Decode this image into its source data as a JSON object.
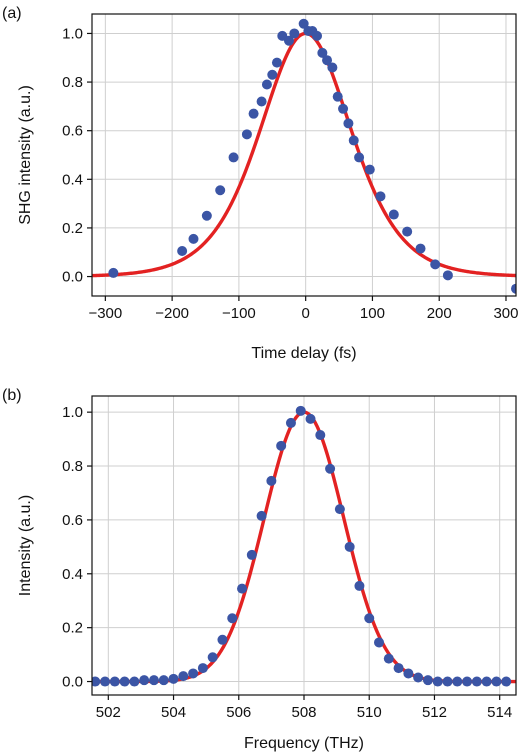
{
  "chart_data": [
    {
      "type": "scatter",
      "panel_label": "(a)",
      "xlabel": "Time delay (fs)",
      "ylabel": "SHG intensity (a.u.)",
      "xlim": [
        -320,
        315
      ],
      "ylim": [
        -0.08,
        1.08
      ],
      "xticks": [
        -300,
        -200,
        -100,
        0,
        100,
        200,
        300
      ],
      "xtick_labels": [
        "−300",
        "−200",
        "−100",
        "0",
        "100",
        "200",
        "300"
      ],
      "yticks": [
        0.0,
        0.2,
        0.4,
        0.6,
        0.8,
        1.0
      ],
      "ytick_labels": [
        "0.0",
        "0.2",
        "0.4",
        "0.6",
        "0.8",
        "1.0"
      ],
      "grid": true,
      "series": [
        {
          "kind": "points",
          "color": "#3b55a5",
          "x": [
            -288,
            -185,
            -168,
            -148,
            -128,
            -108,
            -88,
            -78,
            -66,
            -58,
            -50,
            -43,
            -35,
            -25,
            -17,
            -3,
            4,
            10,
            17,
            25,
            32,
            40,
            48,
            56,
            64,
            72,
            80,
            96,
            112,
            132,
            152,
            172,
            194,
            213,
            315
          ],
          "y": [
            0.015,
            0.105,
            0.155,
            0.25,
            0.355,
            0.49,
            0.585,
            0.67,
            0.72,
            0.79,
            0.83,
            0.88,
            0.99,
            0.97,
            1.0,
            1.04,
            1.01,
            1.01,
            0.99,
            0.92,
            0.89,
            0.86,
            0.74,
            0.69,
            0.63,
            0.56,
            0.49,
            0.44,
            0.33,
            0.255,
            0.185,
            0.115,
            0.05,
            0.005,
            -0.05
          ]
        },
        {
          "kind": "fit",
          "shape": "sech2",
          "color": "#e32222",
          "center": 0,
          "width_param": 92,
          "amplitude": 1.0
        }
      ]
    },
    {
      "type": "scatter",
      "panel_label": "(b)",
      "xlabel": "Frequency (THz)",
      "ylabel": "Intensity (a.u.)",
      "xlim": [
        501.5,
        514.5
      ],
      "ylim": [
        -0.05,
        1.06
      ],
      "xticks": [
        502,
        504,
        506,
        508,
        510,
        512,
        514
      ],
      "xtick_labels": [
        "502",
        "504",
        "506",
        "508",
        "510",
        "512",
        "514"
      ],
      "yticks": [
        0.0,
        0.2,
        0.4,
        0.6,
        0.8,
        1.0
      ],
      "ytick_labels": [
        "0.0",
        "0.2",
        "0.4",
        "0.6",
        "0.8",
        "1.0"
      ],
      "grid": true,
      "series": [
        {
          "kind": "points",
          "color": "#3b55a5",
          "x": [
            501.6,
            501.9,
            502.2,
            502.5,
            502.8,
            503.1,
            503.4,
            503.7,
            504.0,
            504.3,
            504.6,
            504.9,
            505.2,
            505.5,
            505.8,
            506.1,
            506.4,
            506.7,
            507.0,
            507.3,
            507.6,
            507.9,
            508.2,
            508.5,
            508.8,
            509.1,
            509.4,
            509.7,
            510.0,
            510.3,
            510.6,
            510.9,
            511.2,
            511.5,
            511.8,
            512.1,
            512.4,
            512.7,
            513.0,
            513.3,
            513.6,
            513.9,
            514.2
          ],
          "y": [
            0.0,
            0.0,
            0.0,
            0.0,
            0.0,
            0.005,
            0.005,
            0.005,
            0.01,
            0.02,
            0.03,
            0.05,
            0.09,
            0.155,
            0.235,
            0.345,
            0.47,
            0.615,
            0.745,
            0.875,
            0.96,
            1.005,
            0.975,
            0.915,
            0.79,
            0.64,
            0.5,
            0.355,
            0.235,
            0.145,
            0.085,
            0.05,
            0.03,
            0.015,
            0.005,
            0.0,
            0.0,
            0.0,
            0.0,
            0.0,
            0.0,
            0.0,
            0.0
          ]
        },
        {
          "kind": "fit",
          "shape": "gaussian",
          "color": "#e32222",
          "center": 508.0,
          "sigma": 1.22,
          "amplitude": 1.0
        }
      ]
    }
  ]
}
